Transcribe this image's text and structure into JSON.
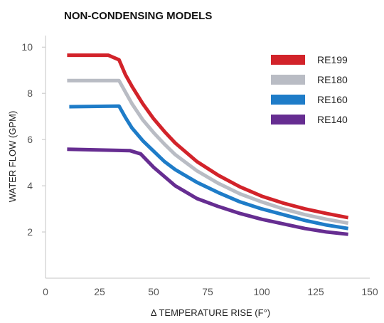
{
  "chart_data": {
    "type": "line",
    "title": "NON-CONDENSING MODELS",
    "xlabel": "Δ TEMPERATURE RISE (F°)",
    "ylabel": "WATER FLOW (GPM)",
    "xlim": [
      0,
      150
    ],
    "ylim": [
      0,
      10.5
    ],
    "xticks": [
      "0",
      "25",
      "50",
      "75",
      "100",
      "125",
      "150"
    ],
    "yticks": [
      "2",
      "4",
      "6",
      "8",
      "10"
    ],
    "grid": false,
    "legend_position": "top-right",
    "series": [
      {
        "name": "RE199",
        "color": "#d2232a",
        "x": [
          10,
          29,
          34,
          37,
          40,
          45,
          50,
          55,
          60,
          70,
          80,
          90,
          100,
          110,
          120,
          130,
          140
        ],
        "y": [
          9.65,
          9.65,
          9.45,
          8.8,
          8.3,
          7.55,
          6.9,
          6.35,
          5.85,
          5.05,
          4.45,
          3.95,
          3.55,
          3.25,
          3.0,
          2.8,
          2.62
        ]
      },
      {
        "name": "RE180",
        "color": "#b9bcc4",
        "x": [
          10,
          34,
          37,
          40,
          45,
          50,
          55,
          60,
          70,
          80,
          90,
          100,
          110,
          120,
          130,
          140
        ],
        "y": [
          8.55,
          8.55,
          8.05,
          7.55,
          6.85,
          6.3,
          5.8,
          5.35,
          4.65,
          4.1,
          3.65,
          3.3,
          3.0,
          2.75,
          2.55,
          2.38
        ]
      },
      {
        "name": "RE160",
        "color": "#1e7cc8",
        "x": [
          11,
          34,
          37,
          40,
          45,
          50,
          55,
          60,
          70,
          80,
          90,
          100,
          110,
          120,
          130,
          140
        ],
        "y": [
          7.42,
          7.45,
          6.95,
          6.5,
          5.95,
          5.5,
          5.05,
          4.7,
          4.15,
          3.7,
          3.3,
          3.0,
          2.75,
          2.5,
          2.3,
          2.15
        ]
      },
      {
        "name": "RE140",
        "color": "#662d91",
        "x": [
          10,
          39,
          44,
          50,
          55,
          60,
          70,
          80,
          90,
          100,
          110,
          120,
          130,
          140
        ],
        "y": [
          5.58,
          5.52,
          5.38,
          4.8,
          4.4,
          4.0,
          3.45,
          3.1,
          2.8,
          2.55,
          2.35,
          2.15,
          2.0,
          1.9
        ]
      }
    ]
  }
}
